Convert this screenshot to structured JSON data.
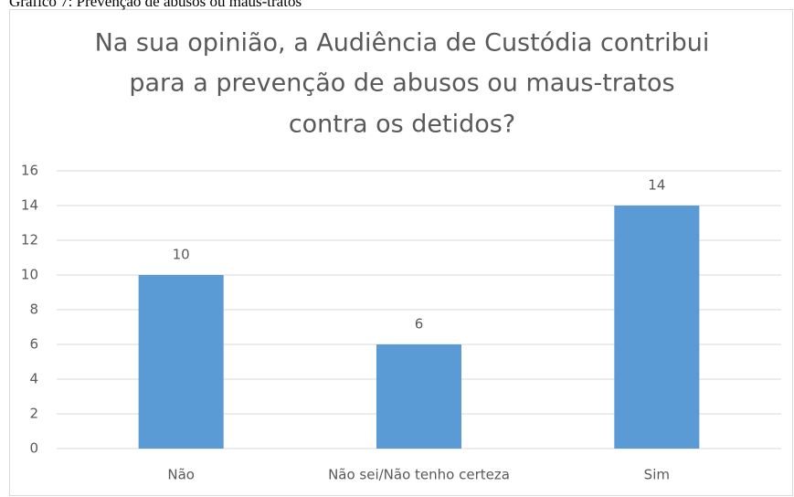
{
  "chart_data": {
    "type": "bar",
    "caption": "Gráfico 7: Prevenção de abusos ou maus-tratos",
    "title": [
      "Na sua opinião, a Audiência de Custódia contribui",
      "para a prevenção de abusos ou maus-tratos",
      "contra os detidos?"
    ],
    "categories": [
      "Não",
      "Não sei/Não tenho certeza",
      "Sim"
    ],
    "values": [
      10,
      6,
      14
    ],
    "color": "#5b9bd5",
    "ylim": [
      0,
      16
    ],
    "yticks": [
      0,
      2,
      4,
      6,
      8,
      10,
      12,
      14,
      16
    ],
    "grid": true,
    "data_labels": true
  }
}
